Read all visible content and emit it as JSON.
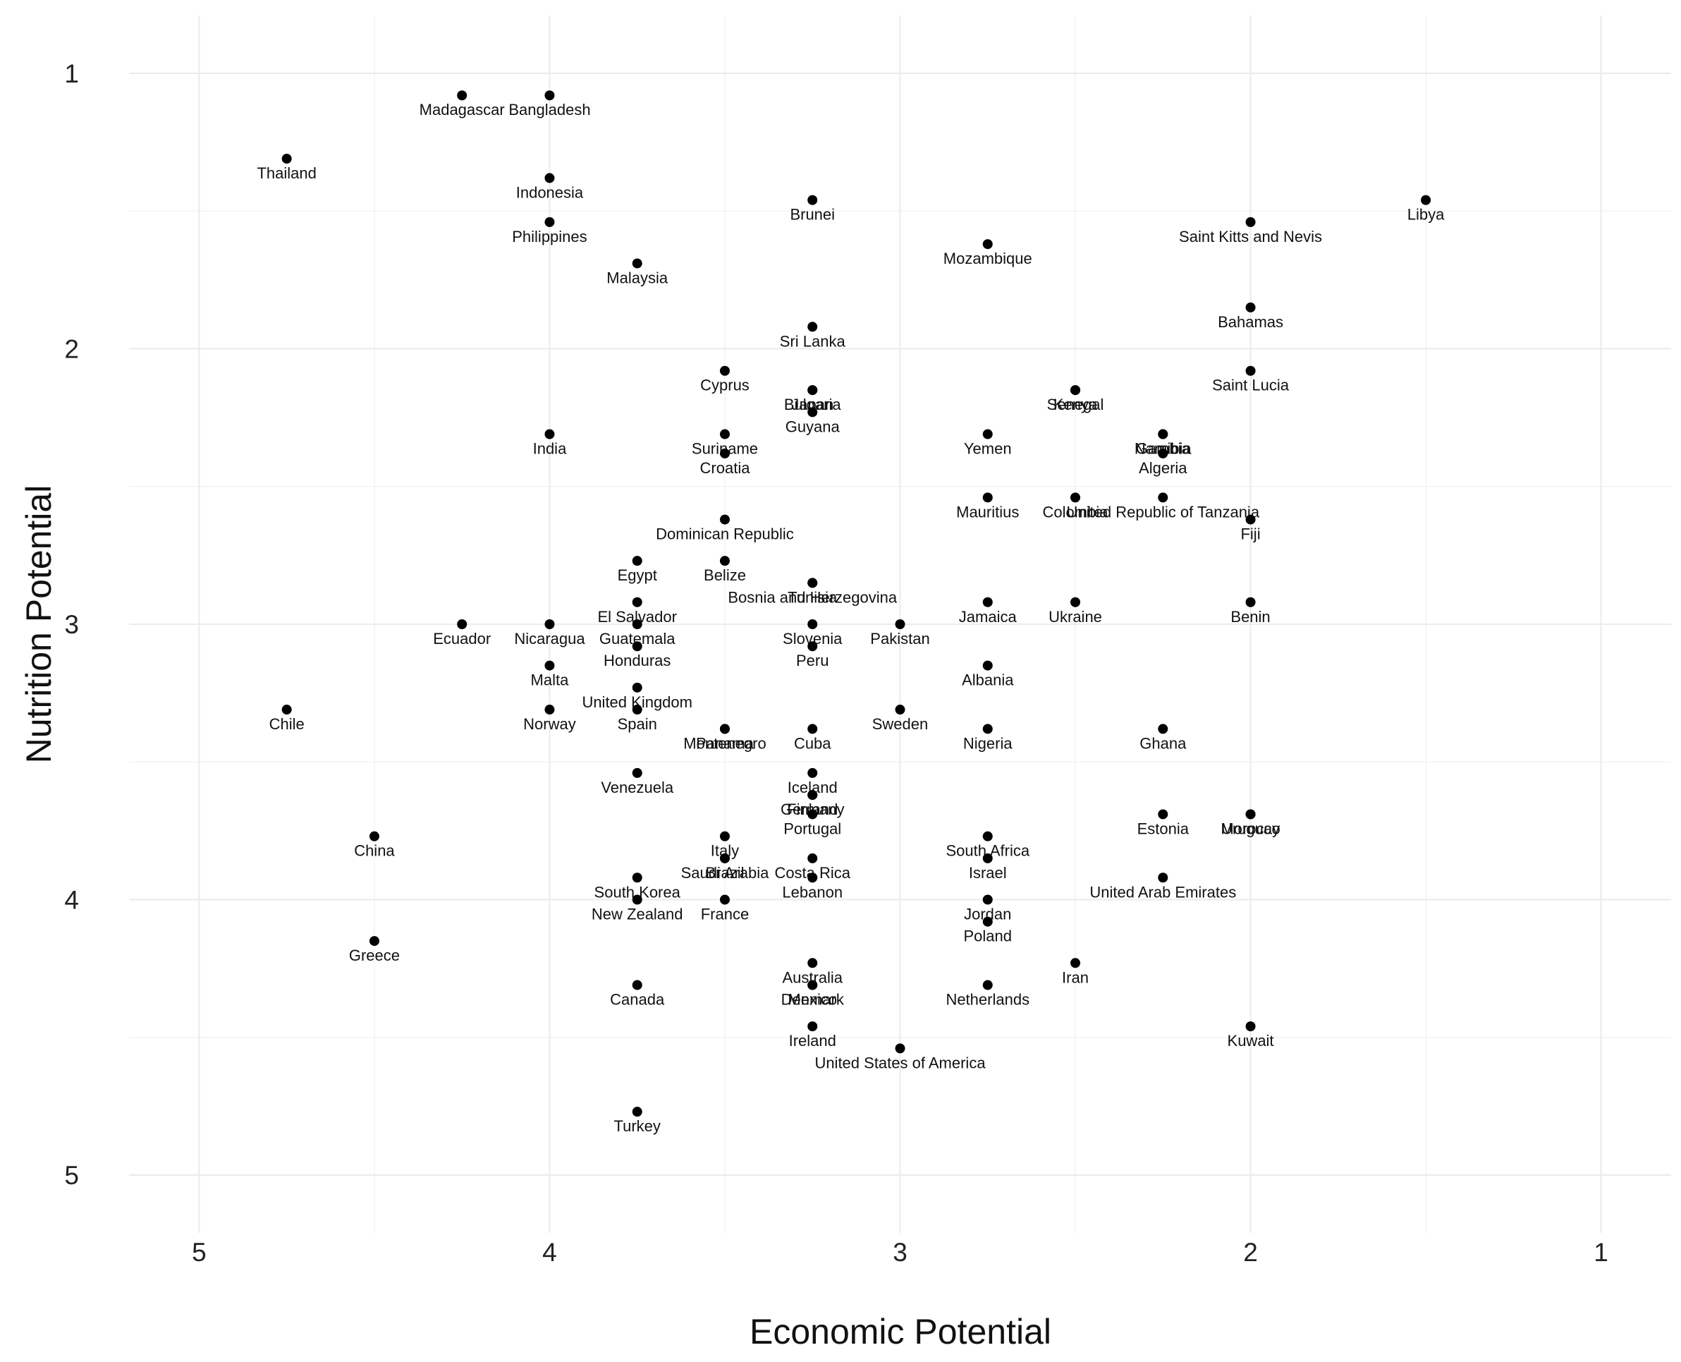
{
  "chart_data": {
    "type": "scatter",
    "title": "",
    "xlabel": "Economic Potential",
    "ylabel": "Nutrition Potential",
    "xlim": [
      5.2,
      0.8
    ],
    "ylim": [
      0.79,
      5.21
    ],
    "x_reversed": true,
    "y_reversed": true,
    "xticks": [
      5,
      4,
      3,
      2,
      1
    ],
    "yticks": [
      1,
      2,
      3,
      4,
      5
    ],
    "grid": true,
    "legend": "none",
    "marker_color": "#000000",
    "points": [
      {
        "label": "Madagascar",
        "x": 4.25,
        "y": 1.08
      },
      {
        "label": "Bangladesh",
        "x": 4.0,
        "y": 1.08
      },
      {
        "label": "Thailand",
        "x": 4.75,
        "y": 1.31
      },
      {
        "label": "Indonesia",
        "x": 4.0,
        "y": 1.38
      },
      {
        "label": "Brunei",
        "x": 3.25,
        "y": 1.46
      },
      {
        "label": "Libya",
        "x": 1.5,
        "y": 1.46
      },
      {
        "label": "Philippines",
        "x": 4.0,
        "y": 1.54
      },
      {
        "label": "Saint Kitts and Nevis",
        "x": 2.0,
        "y": 1.54
      },
      {
        "label": "Mozambique",
        "x": 2.75,
        "y": 1.62
      },
      {
        "label": "Malaysia",
        "x": 3.75,
        "y": 1.69
      },
      {
        "label": "Bahamas",
        "x": 2.0,
        "y": 1.85
      },
      {
        "label": "Sri Lanka",
        "x": 3.25,
        "y": 1.92
      },
      {
        "label": "Cyprus",
        "x": 3.5,
        "y": 2.08
      },
      {
        "label": "Saint Lucia",
        "x": 2.0,
        "y": 2.08
      },
      {
        "label": "Bulgaria",
        "x": 3.25,
        "y": 2.15
      },
      {
        "label": "Japan",
        "x": 3.25,
        "y": 2.15
      },
      {
        "label": "Kenya",
        "x": 2.5,
        "y": 2.15
      },
      {
        "label": "Senegal",
        "x": 2.5,
        "y": 2.15
      },
      {
        "label": "Guyana",
        "x": 3.25,
        "y": 2.23
      },
      {
        "label": "India",
        "x": 4.0,
        "y": 2.31
      },
      {
        "label": "Suriname",
        "x": 3.5,
        "y": 2.31
      },
      {
        "label": "Yemen",
        "x": 2.75,
        "y": 2.31
      },
      {
        "label": "Namibia",
        "x": 2.25,
        "y": 2.31
      },
      {
        "label": "Gambia",
        "x": 2.25,
        "y": 2.31
      },
      {
        "label": "Croatia",
        "x": 3.5,
        "y": 2.38
      },
      {
        "label": "Algeria",
        "x": 2.25,
        "y": 2.38
      },
      {
        "label": "Mauritius",
        "x": 2.75,
        "y": 2.54
      },
      {
        "label": "Colombia",
        "x": 2.5,
        "y": 2.54
      },
      {
        "label": "United Republic of Tanzania",
        "x": 2.25,
        "y": 2.54
      },
      {
        "label": "Dominican Republic",
        "x": 3.5,
        "y": 2.62
      },
      {
        "label": "Fiji",
        "x": 2.0,
        "y": 2.62
      },
      {
        "label": "Egypt",
        "x": 3.75,
        "y": 2.77
      },
      {
        "label": "Belize",
        "x": 3.5,
        "y": 2.77
      },
      {
        "label": "Bosnia and Herzegovina",
        "x": 3.25,
        "y": 2.85
      },
      {
        "label": "Tunisia",
        "x": 3.25,
        "y": 2.85
      },
      {
        "label": "El Salvador",
        "x": 3.75,
        "y": 2.92
      },
      {
        "label": "Jamaica",
        "x": 2.75,
        "y": 2.92
      },
      {
        "label": "Ukraine",
        "x": 2.5,
        "y": 2.92
      },
      {
        "label": "Benin",
        "x": 2.0,
        "y": 2.92
      },
      {
        "label": "Ecuador",
        "x": 4.25,
        "y": 3.0
      },
      {
        "label": "Nicaragua",
        "x": 4.0,
        "y": 3.0
      },
      {
        "label": "Guatemala",
        "x": 3.75,
        "y": 3.0
      },
      {
        "label": "Slovenia",
        "x": 3.25,
        "y": 3.0
      },
      {
        "label": "Pakistan",
        "x": 3.0,
        "y": 3.0
      },
      {
        "label": "Honduras",
        "x": 3.75,
        "y": 3.08
      },
      {
        "label": "Peru",
        "x": 3.25,
        "y": 3.08
      },
      {
        "label": "Malta",
        "x": 4.0,
        "y": 3.15
      },
      {
        "label": "Albania",
        "x": 2.75,
        "y": 3.15
      },
      {
        "label": "United Kingdom",
        "x": 3.75,
        "y": 3.23
      },
      {
        "label": "Chile",
        "x": 4.75,
        "y": 3.31
      },
      {
        "label": "Norway",
        "x": 4.0,
        "y": 3.31
      },
      {
        "label": "Spain",
        "x": 3.75,
        "y": 3.31
      },
      {
        "label": "Sweden",
        "x": 3.0,
        "y": 3.31
      },
      {
        "label": "Montenegro",
        "x": 3.5,
        "y": 3.38
      },
      {
        "label": "Panama",
        "x": 3.5,
        "y": 3.38
      },
      {
        "label": "Cuba",
        "x": 3.25,
        "y": 3.38
      },
      {
        "label": "Nigeria",
        "x": 2.75,
        "y": 3.38
      },
      {
        "label": "Ghana",
        "x": 2.25,
        "y": 3.38
      },
      {
        "label": "Venezuela",
        "x": 3.75,
        "y": 3.54
      },
      {
        "label": "Iceland",
        "x": 3.25,
        "y": 3.54
      },
      {
        "label": "Germany",
        "x": 3.25,
        "y": 3.62
      },
      {
        "label": "Finland",
        "x": 3.25,
        "y": 3.62
      },
      {
        "label": "Portugal",
        "x": 3.25,
        "y": 3.69
      },
      {
        "label": "Estonia",
        "x": 2.25,
        "y": 3.69
      },
      {
        "label": "Uruguay",
        "x": 2.0,
        "y": 3.69
      },
      {
        "label": "Morocco",
        "x": 2.0,
        "y": 3.69
      },
      {
        "label": "China",
        "x": 4.5,
        "y": 3.77
      },
      {
        "label": "Italy",
        "x": 3.5,
        "y": 3.77
      },
      {
        "label": "South Africa",
        "x": 2.75,
        "y": 3.77
      },
      {
        "label": "Saudi Arabia",
        "x": 3.5,
        "y": 3.85
      },
      {
        "label": "Brazil",
        "x": 3.5,
        "y": 3.85
      },
      {
        "label": "Costa Rica",
        "x": 3.25,
        "y": 3.85
      },
      {
        "label": "Israel",
        "x": 2.75,
        "y": 3.85
      },
      {
        "label": "South Korea",
        "x": 3.75,
        "y": 3.92
      },
      {
        "label": "Lebanon",
        "x": 3.25,
        "y": 3.92
      },
      {
        "label": "United Arab Emirates",
        "x": 2.25,
        "y": 3.92
      },
      {
        "label": "New Zealand",
        "x": 3.75,
        "y": 4.0
      },
      {
        "label": "France",
        "x": 3.5,
        "y": 4.0
      },
      {
        "label": "Jordan",
        "x": 2.75,
        "y": 4.0
      },
      {
        "label": "Poland",
        "x": 2.75,
        "y": 4.08
      },
      {
        "label": "Greece",
        "x": 4.5,
        "y": 4.15
      },
      {
        "label": "Australia",
        "x": 3.25,
        "y": 4.23
      },
      {
        "label": "Iran",
        "x": 2.5,
        "y": 4.23
      },
      {
        "label": "Canada",
        "x": 3.75,
        "y": 4.31
      },
      {
        "label": "Denmark",
        "x": 3.25,
        "y": 4.31
      },
      {
        "label": "Mexico",
        "x": 3.25,
        "y": 4.31
      },
      {
        "label": "Netherlands",
        "x": 2.75,
        "y": 4.31
      },
      {
        "label": "Ireland",
        "x": 3.25,
        "y": 4.46
      },
      {
        "label": "Kuwait",
        "x": 2.0,
        "y": 4.46
      },
      {
        "label": "United States of America",
        "x": 3.0,
        "y": 4.54
      },
      {
        "label": "Turkey",
        "x": 3.75,
        "y": 4.77
      }
    ]
  }
}
